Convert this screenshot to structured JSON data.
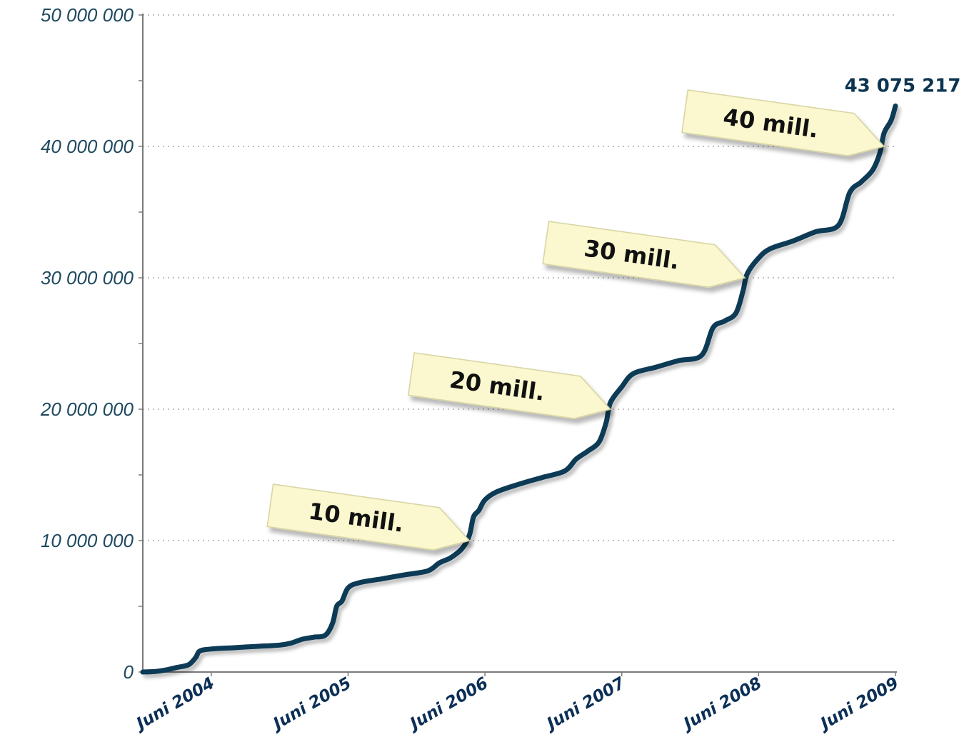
{
  "chart_data": {
    "type": "line",
    "title": "",
    "xlabel": "",
    "ylabel": "",
    "ylim": [
      0,
      50000000
    ],
    "y_ticks": [
      {
        "value": 0,
        "label": "0"
      },
      {
        "value": 10000000,
        "label": "10 000 000"
      },
      {
        "value": 20000000,
        "label": "20 000 000"
      },
      {
        "value": 30000000,
        "label": "30 000 000"
      },
      {
        "value": 40000000,
        "label": "40 000 000"
      },
      {
        "value": 50000000,
        "label": "50 000 000"
      }
    ],
    "y_minor_step": 5000000,
    "x_domain": [
      "2003-12",
      "2009-06"
    ],
    "x_ticks": [
      {
        "date": "2004-06",
        "label": "Juni 2004"
      },
      {
        "date": "2005-06",
        "label": "Juni 2005"
      },
      {
        "date": "2006-06",
        "label": "Juni 2006"
      },
      {
        "date": "2007-06",
        "label": "Juni 2007"
      },
      {
        "date": "2008-06",
        "label": "Juni 2008"
      },
      {
        "date": "2009-06",
        "label": "Juni 2009"
      }
    ],
    "grid": {
      "horizontal": true,
      "style": "dotted"
    },
    "colors": {
      "line": "#0d3a57",
      "axis": "#7a7a7a",
      "grid": "#9a9a9a",
      "callout_fill": "#fbf8cf",
      "callout_stroke": "#d6d2a0"
    },
    "series": [
      {
        "points": [
          [
            "2003-12",
            0
          ],
          [
            "2004-01",
            30000
          ],
          [
            "2004-02",
            150000
          ],
          [
            "2004-03",
            350000
          ],
          [
            "2004-04",
            550000
          ],
          [
            "2004-04-20",
            1100000
          ],
          [
            "2004-05",
            1600000
          ],
          [
            "2004-06",
            1750000
          ],
          [
            "2004-08",
            1850000
          ],
          [
            "2004-10",
            1950000
          ],
          [
            "2004-12",
            2050000
          ],
          [
            "2005-01",
            2200000
          ],
          [
            "2005-02",
            2500000
          ],
          [
            "2005-03",
            2650000
          ],
          [
            "2005-04",
            2800000
          ],
          [
            "2005-04-20",
            3700000
          ],
          [
            "2005-05",
            5000000
          ],
          [
            "2005-05-15",
            5400000
          ],
          [
            "2005-06",
            6400000
          ],
          [
            "2005-07",
            6800000
          ],
          [
            "2005-09",
            7100000
          ],
          [
            "2005-11",
            7400000
          ],
          [
            "2006-01",
            7700000
          ],
          [
            "2006-02",
            8300000
          ],
          [
            "2006-03",
            8700000
          ],
          [
            "2006-04",
            9400000
          ],
          [
            "2006-04-20",
            10400000
          ],
          [
            "2006-05",
            11800000
          ],
          [
            "2006-05-15",
            12300000
          ],
          [
            "2006-06",
            13100000
          ],
          [
            "2006-07",
            13700000
          ],
          [
            "2006-09",
            14300000
          ],
          [
            "2006-11",
            14800000
          ],
          [
            "2007-01",
            15300000
          ],
          [
            "2007-02",
            16200000
          ],
          [
            "2007-03",
            16800000
          ],
          [
            "2007-04",
            17500000
          ],
          [
            "2007-04-20",
            19000000
          ],
          [
            "2007-05",
            20500000
          ],
          [
            "2007-06",
            21700000
          ],
          [
            "2007-07",
            22700000
          ],
          [
            "2007-09",
            23200000
          ],
          [
            "2007-11",
            23700000
          ],
          [
            "2008-01",
            24100000
          ],
          [
            "2008-02",
            26200000
          ],
          [
            "2008-03",
            26700000
          ],
          [
            "2008-04",
            27300000
          ],
          [
            "2008-04-20",
            29000000
          ],
          [
            "2008-05",
            30300000
          ],
          [
            "2008-06",
            31500000
          ],
          [
            "2008-07",
            32200000
          ],
          [
            "2008-09",
            32800000
          ],
          [
            "2008-11",
            33500000
          ],
          [
            "2009-01",
            34000000
          ],
          [
            "2009-02",
            36500000
          ],
          [
            "2009-03",
            37300000
          ],
          [
            "2009-04",
            38200000
          ],
          [
            "2009-04-20",
            39500000
          ],
          [
            "2009-05",
            41000000
          ],
          [
            "2009-05-20",
            42000000
          ],
          [
            "2009-06",
            43075217
          ]
        ]
      }
    ],
    "annotations": [
      {
        "text": "10 mill.",
        "date": "2006-04-20",
        "value": 10000000
      },
      {
        "text": "20 mill.",
        "date": "2007-05",
        "value": 20000000
      },
      {
        "text": "30 mill.",
        "date": "2008-04-25",
        "value": 30000000
      },
      {
        "text": "40 mill.",
        "date": "2009-05",
        "value": 40000000
      }
    ],
    "final_label": {
      "text": "43 075 217",
      "date": "2009-06",
      "value": 43075217
    }
  }
}
